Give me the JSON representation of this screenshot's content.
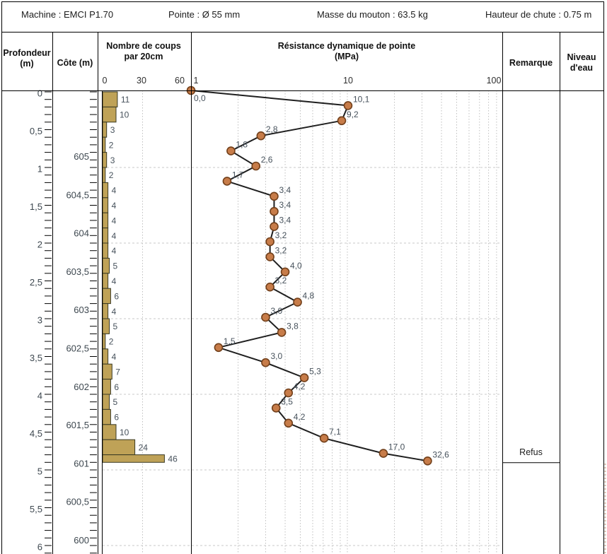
{
  "header": {
    "machine": "Machine : EMCI P1.70",
    "pointe": "Pointe : Ø 55 mm",
    "masse": "Masse du mouton : 63.5 kg",
    "hauteur": "Hauteur de chute : 0.75 m"
  },
  "table": {
    "profondeur_title": "Profondeur",
    "profondeur_unit": "(m)",
    "cote_title": "Côte (m)",
    "coups_title": "Nombre de coups",
    "coups_subtitle": "par 20cm",
    "resistance_title": "Résistance dynamique de pointe",
    "resistance_subtitle": "(MPa)",
    "remarque_title": "Remarque",
    "niveau_title": "Niveau",
    "niveau_subtitle": "d'eau"
  },
  "depth_axis": {
    "step_m": 0.5,
    "labels": [
      "0",
      "0,5",
      "1",
      "1,5",
      "2",
      "2,5",
      "3",
      "3,5",
      "4",
      "4,5",
      "5",
      "5,5",
      "6"
    ]
  },
  "cote_axis": {
    "labels": [
      "605",
      "604,5",
      "604",
      "603,5",
      "603",
      "602,5",
      "602",
      "601,5",
      "601",
      "600,5",
      "600"
    ]
  },
  "remarque": {
    "text": "Refus",
    "refusal_depth_m": 4.9
  },
  "colors": {
    "bar_fill": "#bfa257",
    "bar_stroke": "#3a3a24",
    "marker_fill": "#c77c49",
    "marker_stroke": "#72401b",
    "curve_line": "#1f1f1f",
    "grid_dotted": "#bfbfbf",
    "grid_dashed": "#c9c9c9",
    "value_label": "#47525c",
    "scale_label": "#3d474f",
    "border": "#000000"
  },
  "chart_data": [
    {
      "type": "bar",
      "orientation": "horizontal",
      "title": "Nombre de coups par 20cm",
      "xlim": [
        0,
        60
      ],
      "x_ticks": [
        "0",
        "30",
        "60"
      ],
      "depth_start_m": 0.0,
      "depth_step_m": 0.2,
      "refusal_depth_m": 4.9,
      "values": [
        11,
        10,
        3,
        2,
        3,
        2,
        4,
        4,
        4,
        4,
        4,
        5,
        4,
        6,
        4,
        5,
        2,
        4,
        7,
        6,
        5,
        6,
        10,
        24,
        46
      ]
    },
    {
      "type": "line",
      "title": "Résistance dynamique de pointe (MPa)",
      "x_scale": "log",
      "xlim": [
        1,
        100
      ],
      "x_ticks": [
        "1",
        "10",
        "100"
      ],
      "depths_m": [
        0,
        0.2,
        0.4,
        0.6,
        0.8,
        1,
        1.2,
        1.4,
        1.6,
        1.8,
        2,
        2.2,
        2.4,
        2.6,
        2.8,
        3,
        3.2,
        3.4,
        3.6,
        3.8,
        4,
        4.2,
        4.4,
        4.6,
        4.8,
        4.9
      ],
      "values": [
        0,
        10.1,
        9.2,
        2.8,
        1.8,
        2.6,
        1.7,
        3.4,
        3.4,
        3.4,
        3.2,
        3.2,
        4,
        3.2,
        4.8,
        3,
        3.8,
        1.5,
        3,
        5.3,
        4.2,
        3.5,
        4.2,
        7.1,
        17,
        32.6
      ],
      "point_labels": [
        "0,0",
        "10,1",
        "9,2",
        "2,8",
        "1,8",
        "2,6",
        "1,7",
        "3,4",
        "3,4",
        "3,4",
        "3,2",
        "3,2",
        "4,0",
        "3,2",
        "4,8",
        "3,0",
        "3,8",
        "1,5",
        "3,0",
        "5,3",
        "4,2",
        "3,5",
        "4,2",
        "7,1",
        "17,0",
        "32,6"
      ]
    }
  ]
}
